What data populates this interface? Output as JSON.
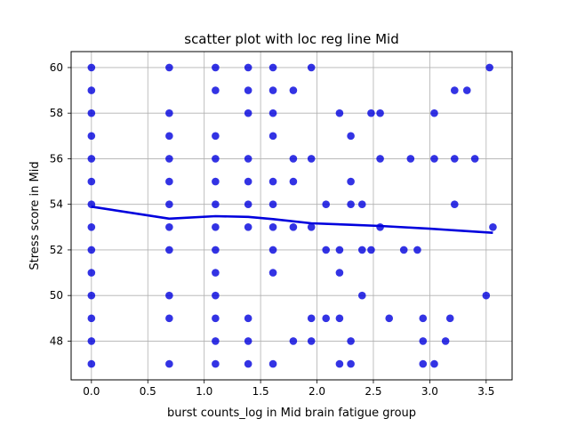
{
  "chart_data": {
    "type": "scatter",
    "title": "scatter plot with loc reg line Mid",
    "xlabel": "burst counts_log in Mid brain fatigue group",
    "ylabel": "Stress score in Mid",
    "xlim": [
      -0.18,
      3.73
    ],
    "ylim": [
      46.3,
      60.7
    ],
    "xticks": [
      0.0,
      0.5,
      1.0,
      1.5,
      2.0,
      2.5,
      3.0,
      3.5
    ],
    "xtick_labels": [
      "0.0",
      "0.5",
      "1.0",
      "1.5",
      "2.0",
      "2.5",
      "3.0",
      "3.5"
    ],
    "yticks": [
      48,
      50,
      52,
      54,
      56,
      58,
      60
    ],
    "ytick_labels": [
      "48",
      "50",
      "52",
      "54",
      "56",
      "58",
      "60"
    ],
    "grid": true,
    "point_color": "#0000dd",
    "line_color": "#0000dd",
    "points": [
      [
        0.0,
        60
      ],
      [
        0.0,
        59
      ],
      [
        0.0,
        58
      ],
      [
        0.0,
        57
      ],
      [
        0.0,
        56
      ],
      [
        0.0,
        55
      ],
      [
        0.0,
        54
      ],
      [
        0.0,
        53
      ],
      [
        0.0,
        52
      ],
      [
        0.0,
        51
      ],
      [
        0.0,
        50
      ],
      [
        0.0,
        49
      ],
      [
        0.0,
        48
      ],
      [
        0.0,
        47
      ],
      [
        0.69,
        60
      ],
      [
        0.69,
        58
      ],
      [
        0.69,
        57
      ],
      [
        0.69,
        56
      ],
      [
        0.69,
        55
      ],
      [
        0.69,
        54
      ],
      [
        0.69,
        53
      ],
      [
        0.69,
        52
      ],
      [
        0.69,
        50
      ],
      [
        0.69,
        49
      ],
      [
        0.69,
        47
      ],
      [
        1.1,
        60
      ],
      [
        1.1,
        59
      ],
      [
        1.1,
        57
      ],
      [
        1.1,
        56
      ],
      [
        1.1,
        55
      ],
      [
        1.1,
        54
      ],
      [
        1.1,
        53
      ],
      [
        1.1,
        52
      ],
      [
        1.1,
        51
      ],
      [
        1.1,
        50
      ],
      [
        1.1,
        49
      ],
      [
        1.1,
        48
      ],
      [
        1.1,
        47
      ],
      [
        1.39,
        60
      ],
      [
        1.39,
        59
      ],
      [
        1.39,
        58
      ],
      [
        1.39,
        56
      ],
      [
        1.39,
        55
      ],
      [
        1.39,
        54
      ],
      [
        1.39,
        53
      ],
      [
        1.39,
        49
      ],
      [
        1.39,
        48
      ],
      [
        1.39,
        47
      ],
      [
        1.61,
        60
      ],
      [
        1.61,
        59
      ],
      [
        1.61,
        58
      ],
      [
        1.61,
        57
      ],
      [
        1.61,
        55
      ],
      [
        1.61,
        54
      ],
      [
        1.61,
        53
      ],
      [
        1.61,
        52
      ],
      [
        1.61,
        51
      ],
      [
        1.61,
        47
      ],
      [
        1.79,
        59
      ],
      [
        1.79,
        56
      ],
      [
        1.79,
        55
      ],
      [
        1.79,
        53
      ],
      [
        1.79,
        48
      ],
      [
        1.95,
        60
      ],
      [
        1.95,
        56
      ],
      [
        1.95,
        53
      ],
      [
        1.95,
        49
      ],
      [
        1.95,
        48
      ],
      [
        2.08,
        54
      ],
      [
        2.08,
        52
      ],
      [
        2.08,
        49
      ],
      [
        2.2,
        58
      ],
      [
        2.2,
        52
      ],
      [
        2.2,
        51
      ],
      [
        2.2,
        49
      ],
      [
        2.2,
        47
      ],
      [
        2.3,
        57
      ],
      [
        2.3,
        55
      ],
      [
        2.3,
        54
      ],
      [
        2.3,
        48
      ],
      [
        2.3,
        47
      ],
      [
        2.4,
        54
      ],
      [
        2.4,
        52
      ],
      [
        2.4,
        50
      ],
      [
        2.48,
        58
      ],
      [
        2.48,
        52
      ],
      [
        2.56,
        58
      ],
      [
        2.56,
        56
      ],
      [
        2.56,
        53
      ],
      [
        2.64,
        49
      ],
      [
        2.77,
        52
      ],
      [
        2.83,
        56
      ],
      [
        2.89,
        52
      ],
      [
        2.94,
        49
      ],
      [
        2.94,
        48
      ],
      [
        2.94,
        47
      ],
      [
        3.04,
        58
      ],
      [
        3.04,
        56
      ],
      [
        3.04,
        47
      ],
      [
        3.14,
        48
      ],
      [
        3.18,
        49
      ],
      [
        3.22,
        59
      ],
      [
        3.22,
        56
      ],
      [
        3.22,
        54
      ],
      [
        3.33,
        59
      ],
      [
        3.4,
        56
      ],
      [
        3.5,
        50
      ],
      [
        3.53,
        60
      ],
      [
        3.56,
        53
      ]
    ],
    "regression_line": {
      "x": [
        0.0,
        0.69,
        1.1,
        1.39,
        1.61,
        1.95,
        2.3,
        2.56,
        3.0,
        3.56
      ],
      "y": [
        53.9,
        53.37,
        53.48,
        53.45,
        53.35,
        53.17,
        53.1,
        53.05,
        52.93,
        52.75
      ]
    }
  }
}
